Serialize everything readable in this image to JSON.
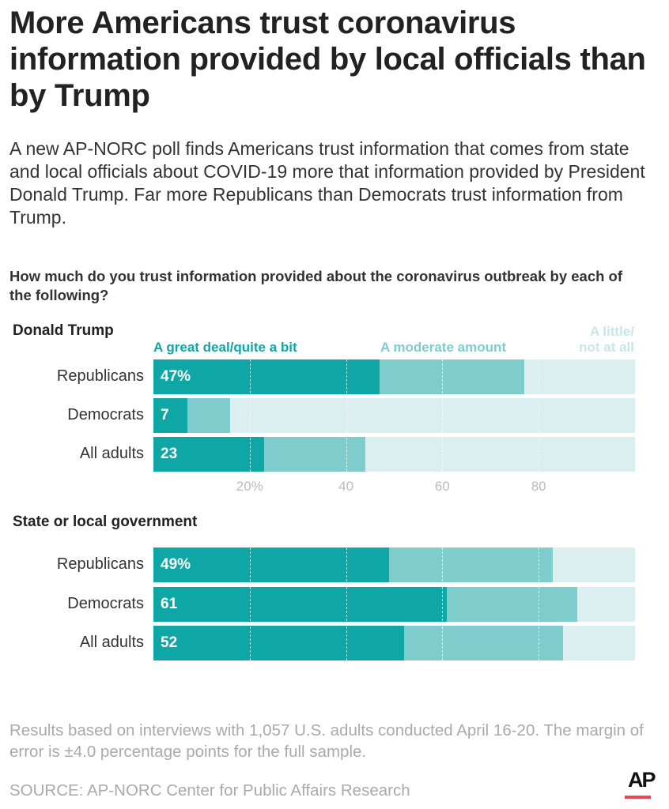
{
  "title": "More Americans trust coronavirus information provided by local officials than by Trump",
  "subtitle": "A new AP-NORC poll finds Americans trust information that comes from state and local officials about COVID-19 more that information provided by President Donald Trump. Far more Republicans than Democrats trust information from Trump.",
  "question": "How much do you trust information provided about the coronavirus outbreak by each of the following?",
  "colors": {
    "great": "#0fa7a6",
    "moderate": "#7ecdcc",
    "little": "#dbeff1"
  },
  "chart_data": {
    "type": "bar",
    "stacked": true,
    "orientation": "horizontal",
    "legend": [
      "A great deal/quite a bit",
      "A moderate amount",
      "A little/ not at all"
    ],
    "xticks": [
      "20%",
      "40",
      "60",
      "80"
    ],
    "xtick_values": [
      20,
      40,
      60,
      80
    ],
    "xlim": [
      0,
      100
    ],
    "groups": [
      {
        "name": "Donald Trump",
        "rows": [
          {
            "label": "Republicans",
            "great": 47,
            "moderate": 30,
            "little": 23,
            "value_label": "47%"
          },
          {
            "label": "Democrats",
            "great": 7,
            "moderate": 9,
            "little": 84,
            "value_label": "7"
          },
          {
            "label": "All adults",
            "great": 23,
            "moderate": 21,
            "little": 56,
            "value_label": "23"
          }
        ]
      },
      {
        "name": "State or local government",
        "rows": [
          {
            "label": "Republicans",
            "great": 49,
            "moderate": 34,
            "little": 17,
            "value_label": "49%"
          },
          {
            "label": "Democrats",
            "great": 61,
            "moderate": 27,
            "little": 12,
            "value_label": "61"
          },
          {
            "label": "All adults",
            "great": 52,
            "moderate": 33,
            "little": 15,
            "value_label": "52"
          }
        ]
      }
    ]
  },
  "footnote": "Results based on interviews with 1,057 U.S. adults conducted April 16-20. The margin of error is ±4.0 percentage points for the full sample.",
  "source": "SOURCE: AP-NORC Center for Public Affairs Research",
  "logo": "AP"
}
